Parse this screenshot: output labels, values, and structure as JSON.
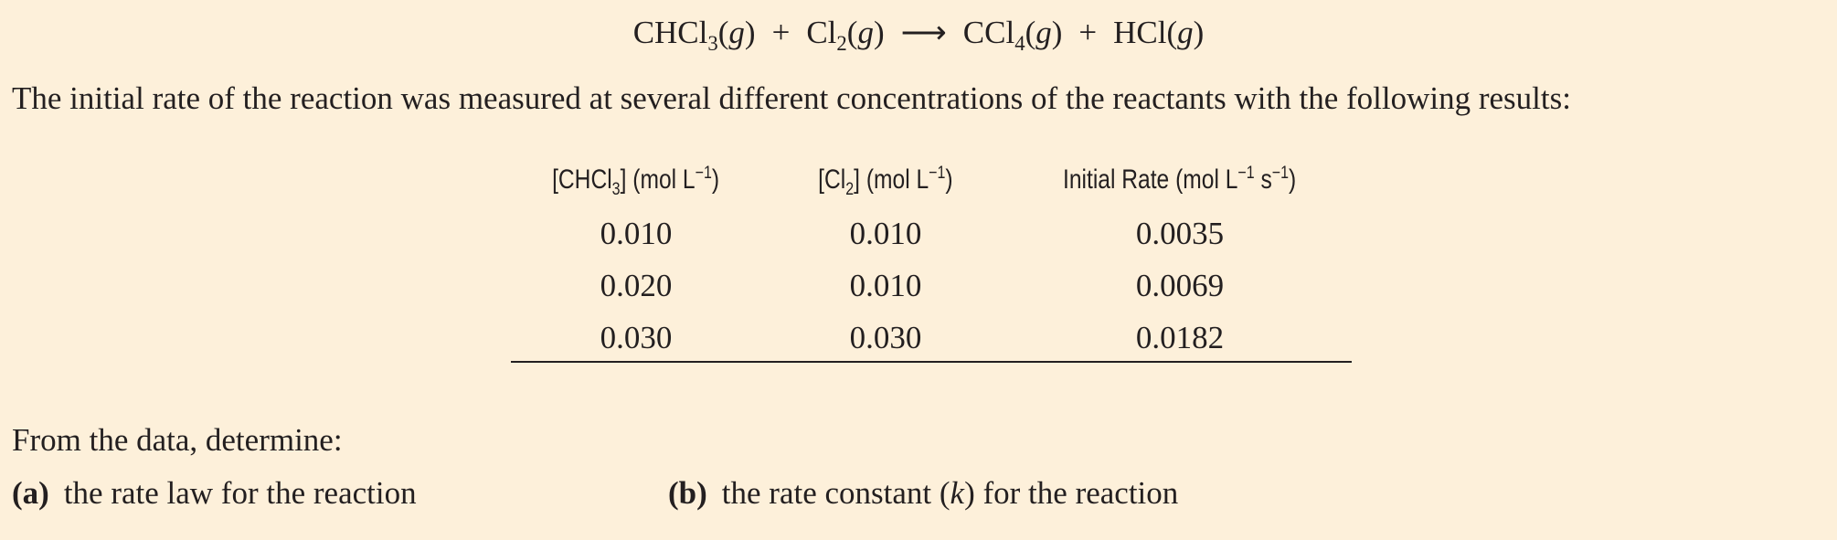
{
  "equation": {
    "species": [
      [
        {
          "t": "CHCl"
        },
        {
          "sub": "3"
        },
        {
          "t": "("
        },
        {
          "i": "g"
        },
        {
          "t": ")"
        }
      ],
      [
        {
          "t": "Cl"
        },
        {
          "sub": "2"
        },
        {
          "t": "("
        },
        {
          "i": "g"
        },
        {
          "t": ")"
        }
      ],
      [
        {
          "t": "CCl"
        },
        {
          "sub": "4"
        },
        {
          "t": "("
        },
        {
          "i": "g"
        },
        {
          "t": ")"
        }
      ],
      [
        {
          "t": "HCl("
        },
        {
          "i": "g"
        },
        {
          "t": ")"
        }
      ]
    ],
    "operators": [
      "+",
      "⟶",
      "+"
    ]
  },
  "intro": "The initial rate of the reaction was measured at several different concentrations of the reactants with the following results:",
  "table": {
    "headers": [
      [
        {
          "t": "[CHCl"
        },
        {
          "sub": "3"
        },
        {
          "t": "] (mol L"
        },
        {
          "sup": "−1"
        },
        {
          "t": ")"
        }
      ],
      [
        {
          "t": "[Cl"
        },
        {
          "sub": "2"
        },
        {
          "t": "] (mol L"
        },
        {
          "sup": "−1"
        },
        {
          "t": ")"
        }
      ],
      [
        {
          "t": "Initial Rate (mol L"
        },
        {
          "sup": "−1"
        },
        {
          "t": " s"
        },
        {
          "sup": "−1"
        },
        {
          "t": ")"
        }
      ]
    ],
    "rows": [
      [
        "0.010",
        "0.010",
        "0.0035"
      ],
      [
        "0.020",
        "0.010",
        "0.0069"
      ],
      [
        "0.030",
        "0.030",
        "0.0182"
      ]
    ]
  },
  "prompt": "From the data, determine:",
  "parts": [
    {
      "label": "(a)",
      "text": [
        {
          "t": "the rate law for the reaction"
        }
      ]
    },
    {
      "label": "(b)",
      "text": [
        {
          "t": "the rate constant ("
        },
        {
          "i": "k"
        },
        {
          "t": ") for the reaction"
        }
      ]
    }
  ]
}
